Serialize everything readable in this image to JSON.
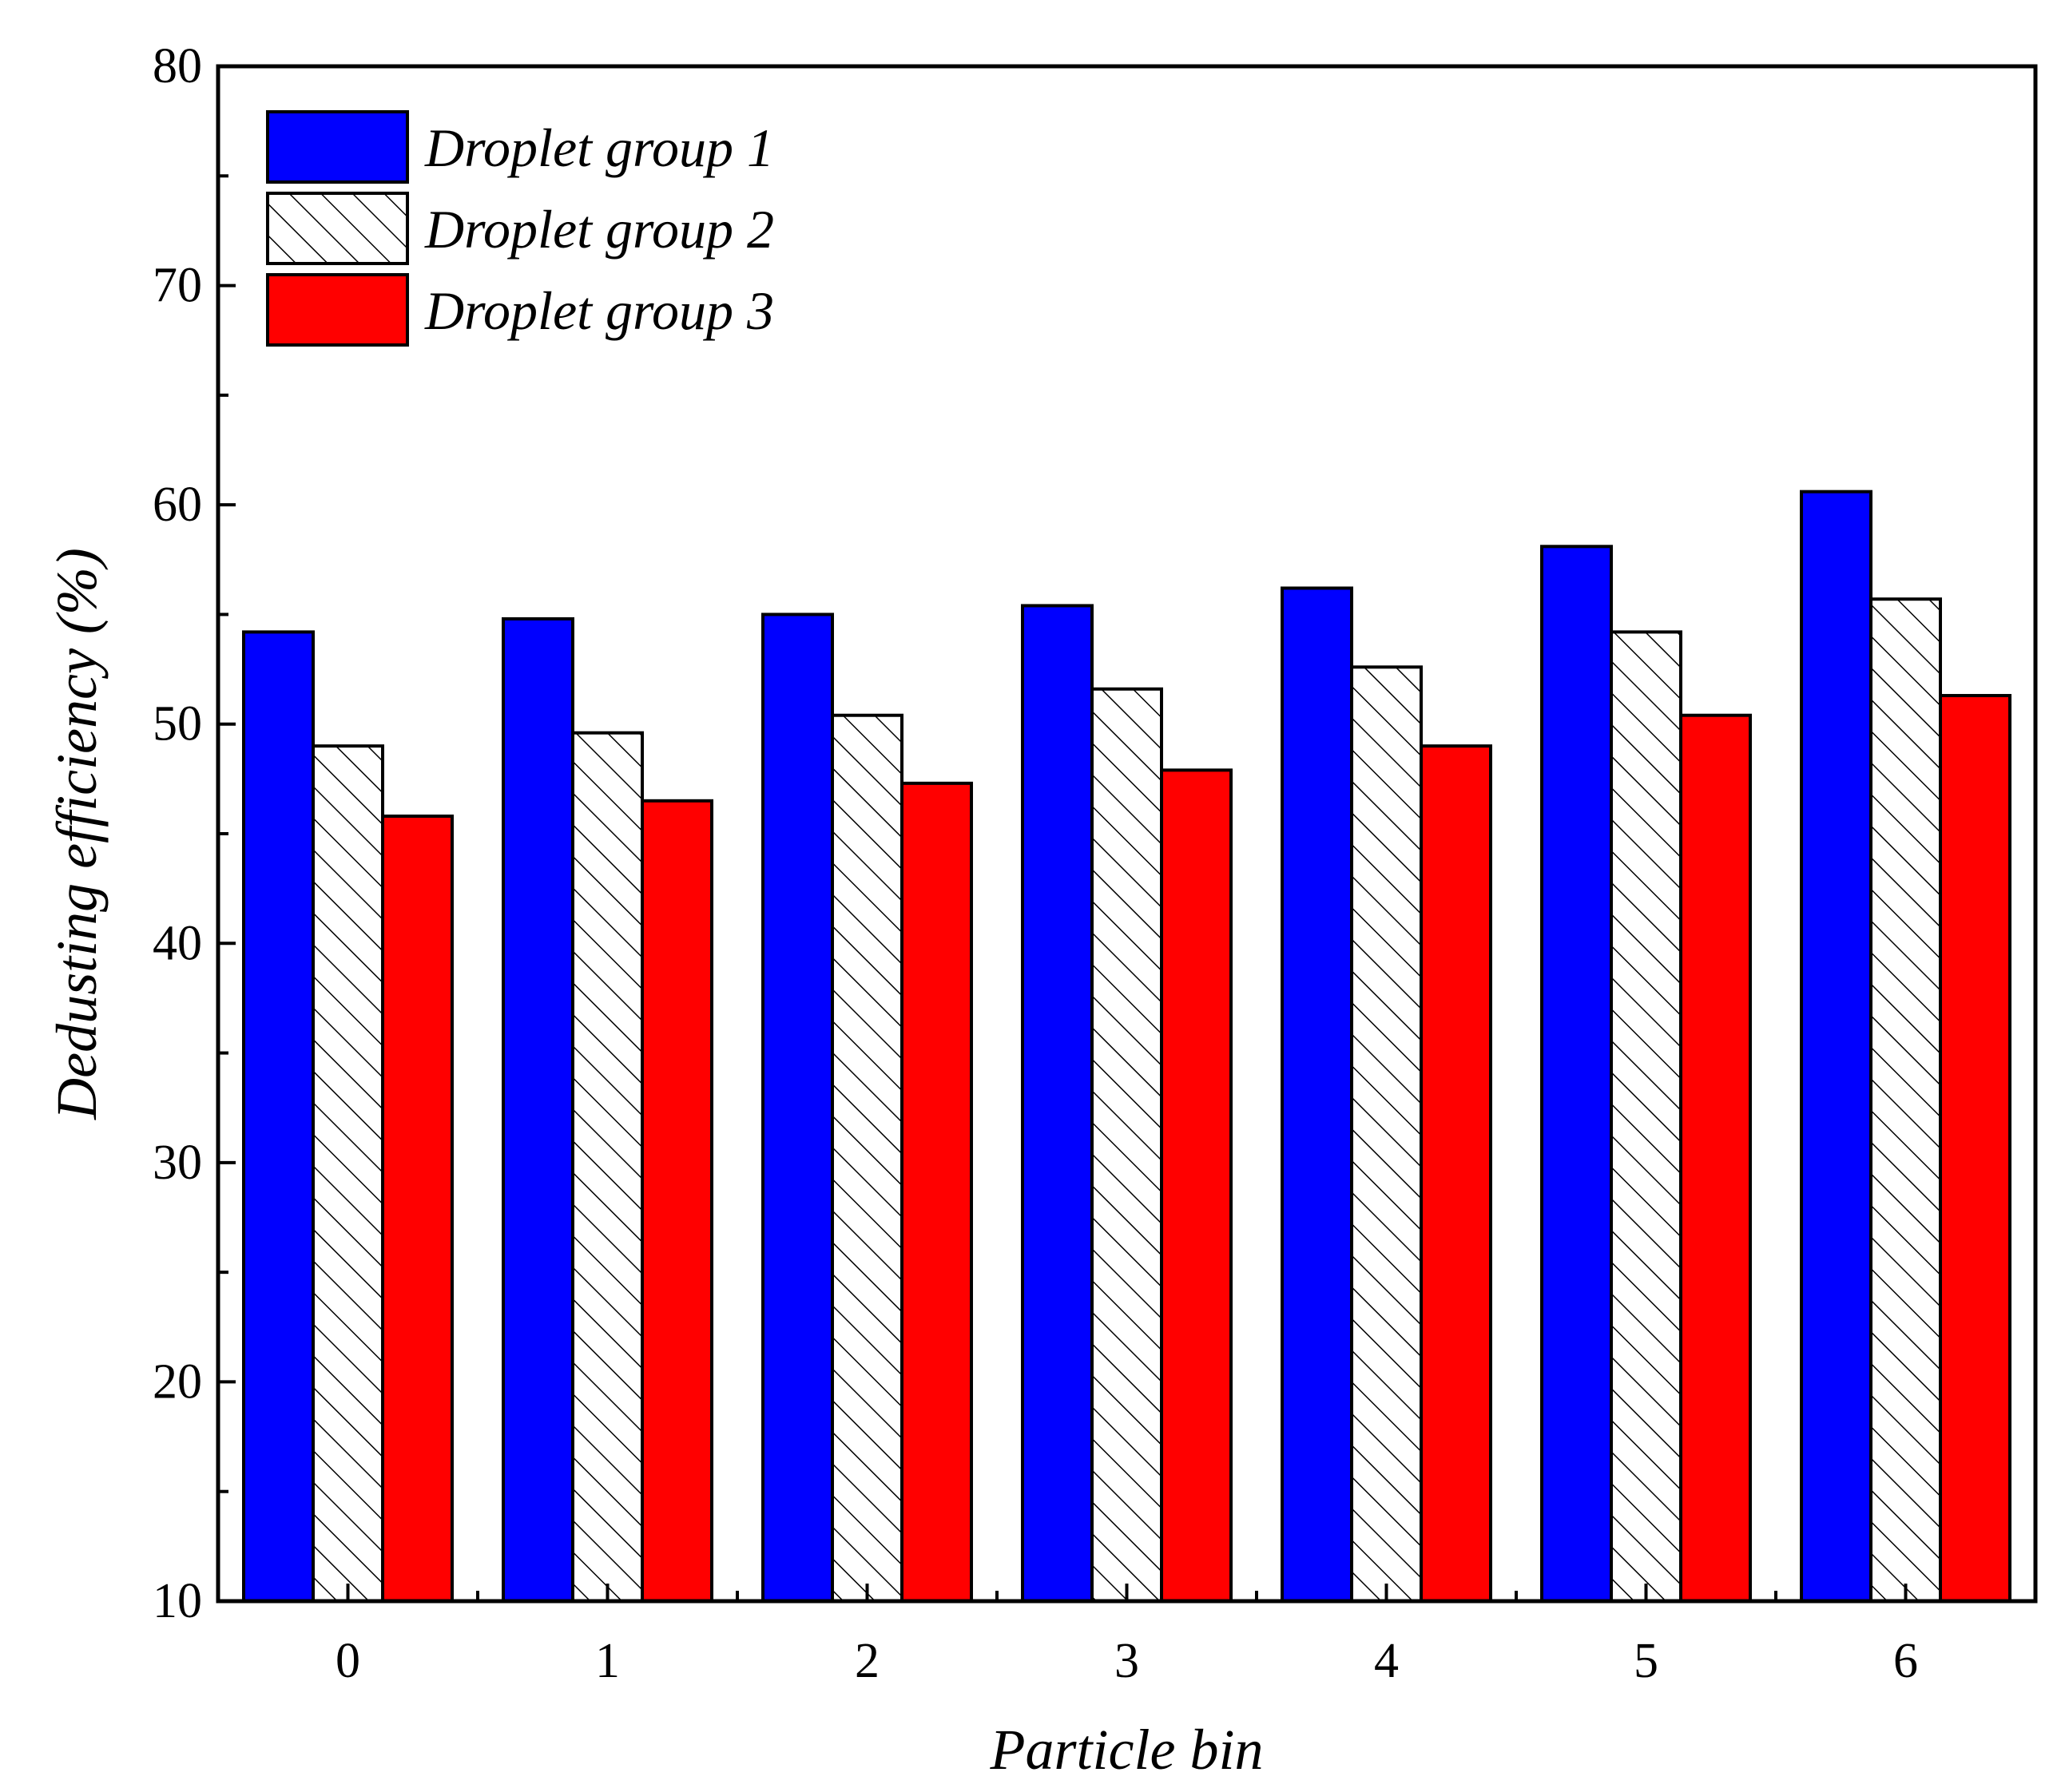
{
  "chart_data": {
    "type": "bar",
    "title": "",
    "xlabel": "Particle bin",
    "ylabel": "Dedusting efficiency (%)",
    "ylim": [
      10,
      80
    ],
    "yticks": [
      "10",
      "20",
      "30",
      "40",
      "50",
      "60",
      "70",
      "80"
    ],
    "categories": [
      "0",
      "1",
      "2",
      "3",
      "4",
      "5",
      "6"
    ],
    "legend_position": "top-left",
    "grid": false,
    "series": [
      {
        "name": "Droplet group 1",
        "fill": "solid",
        "color": "#0000ff",
        "values": [
          54.2,
          54.8,
          55.0,
          55.4,
          56.2,
          58.1,
          60.6
        ]
      },
      {
        "name": "Droplet group 2",
        "fill": "hatch",
        "color": "#ffffff",
        "values": [
          49.0,
          49.6,
          50.4,
          51.6,
          52.6,
          54.2,
          55.7
        ]
      },
      {
        "name": "Droplet group 3",
        "fill": "solid",
        "color": "#ff0000",
        "values": [
          45.8,
          46.5,
          47.3,
          47.9,
          49.0,
          50.4,
          51.3
        ]
      }
    ]
  }
}
